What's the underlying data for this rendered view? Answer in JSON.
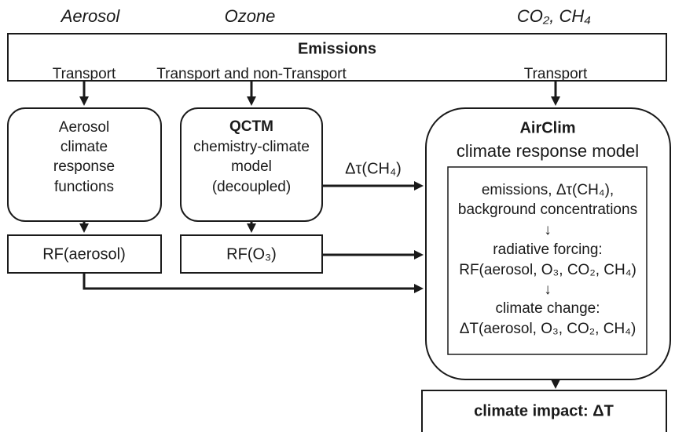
{
  "header": {
    "labels": [
      "Aerosol",
      "Ozone",
      "CO₂, CH₄"
    ]
  },
  "emissions": {
    "title": "Emissions",
    "transport": [
      "Transport",
      "Transport and non-Transport",
      "Transport"
    ]
  },
  "aerosol_model": {
    "lines": [
      "Aerosol",
      "climate",
      "response",
      "functions"
    ]
  },
  "qctm": {
    "title": "QCTM",
    "lines": [
      "chemistry-climate",
      "model",
      "(decoupled)"
    ]
  },
  "edge_label": "Δτ(CH₄)",
  "airclim": {
    "title": "AirClim",
    "subtitle": "climate response model",
    "steps": [
      "emissions, Δτ(CH₄),",
      "background concentrations",
      "↓",
      "radiative forcing:",
      "RF(aerosol, O₃, CO₂, CH₄)",
      "↓",
      "climate change:",
      "ΔT(aerosol, O₃, CO₂, CH₄)"
    ]
  },
  "rf_aerosol": "RF(aerosol)",
  "rf_o3": "RF(O₃)",
  "impact": "climate impact: ΔT"
}
